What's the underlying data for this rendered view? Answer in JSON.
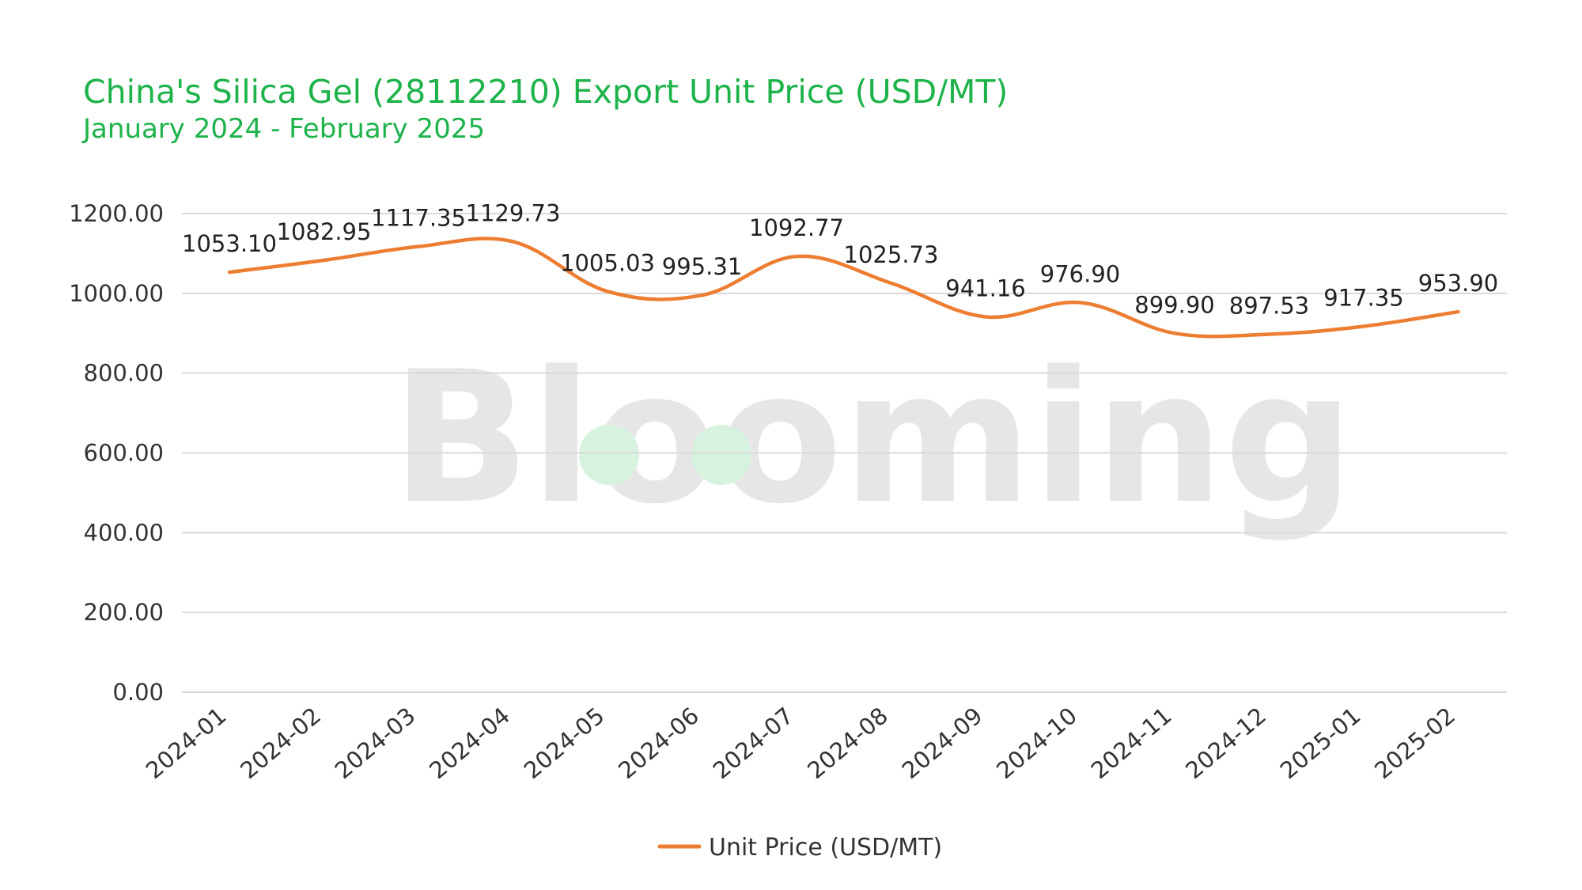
{
  "chart_data": {
    "type": "line",
    "title": "China's Silica Gel (28112210) Export Unit Price (USD/MT)",
    "subtitle": "January 2024 - February 2025",
    "categories": [
      "2024-01",
      "2024-02",
      "2024-03",
      "2024-04",
      "2024-05",
      "2024-06",
      "2024-07",
      "2024-08",
      "2024-09",
      "2024-10",
      "2024-11",
      "2024-12",
      "2025-01",
      "2025-02"
    ],
    "series": [
      {
        "name": "Unit Price (USD/MT)",
        "values": [
          1053.1,
          1082.95,
          1117.35,
          1129.73,
          1005.03,
          995.31,
          1092.77,
          1025.73,
          941.16,
          976.9,
          899.9,
          897.53,
          917.35,
          953.9
        ],
        "labels": [
          "1053.10",
          "1082.95",
          "1117.35",
          "1129.73",
          "1005.03",
          "995.31",
          "1092.77",
          "1025.73",
          "941.16",
          "976.90",
          "899.90",
          "897.53",
          "917.35",
          "953.90"
        ]
      }
    ],
    "yticks": [
      "0.00",
      "200.00",
      "400.00",
      "600.00",
      "800.00",
      "1000.00",
      "1200.00"
    ],
    "ylim": [
      0,
      1200
    ],
    "grid": true,
    "legend": "bottom",
    "colors": {
      "line": "#ed7d31",
      "title": "#1db34a",
      "grid": "#d9d9d9"
    },
    "watermark": "Blooming"
  }
}
